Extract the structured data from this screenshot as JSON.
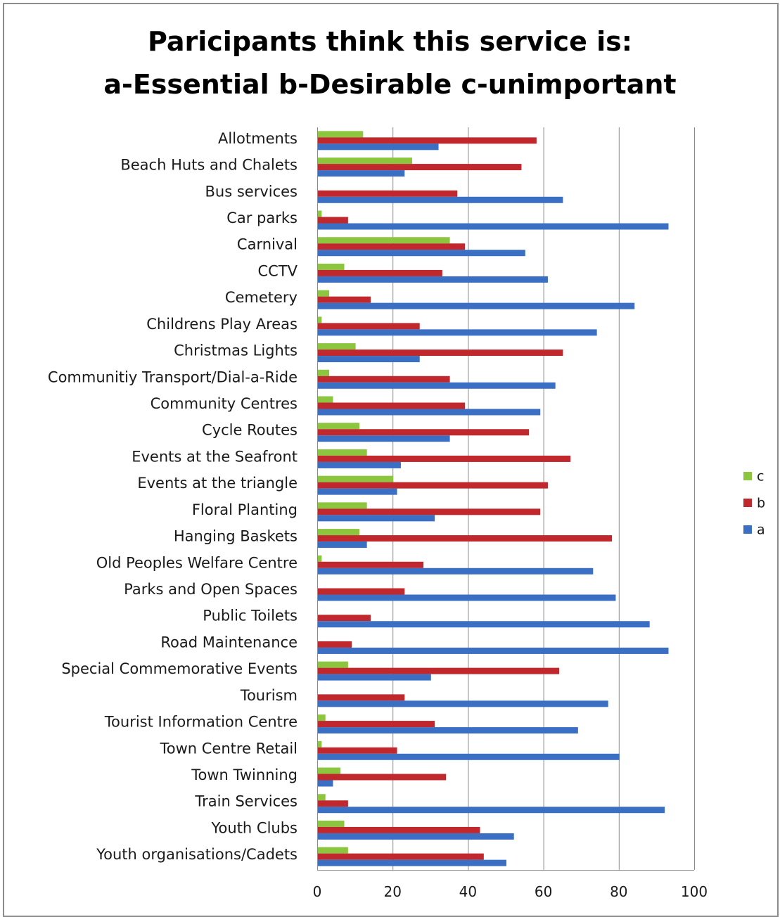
{
  "chart_data": {
    "type": "bar",
    "orientation": "horizontal",
    "title_line1": "Paricipants think this service is:",
    "title_line2": "a-Essential b-Desirable c-unimportant",
    "xlim": [
      0,
      100
    ],
    "x_ticks": [
      "0",
      "20",
      "40",
      "60",
      "80",
      "100"
    ],
    "grid": "vertical",
    "legend_position": "right",
    "categories": [
      "Allotments",
      "Beach Huts and Chalets",
      "Bus services",
      "Car parks",
      "Carnival",
      "CCTV",
      "Cemetery",
      "Childrens Play Areas",
      "Christmas Lights",
      "Communitiy Transport/Dial-a-Ride",
      "Community Centres",
      "Cycle Routes",
      "Events at the Seafront",
      "Events at the triangle",
      "Floral Planting",
      "Hanging Baskets",
      "Old Peoples Welfare Centre",
      "Parks and Open Spaces",
      "Public Toilets",
      "Road Maintenance",
      "Special Commemorative Events",
      "Tourism",
      "Tourist Information Centre",
      "Town Centre Retail",
      "Town Twinning",
      "Train Services",
      "Youth Clubs",
      "Youth organisations/Cadets"
    ],
    "series": [
      {
        "name": "c",
        "color": "#8cc63f",
        "values": [
          12,
          25,
          0,
          1,
          35,
          7,
          3,
          1,
          10,
          3,
          4,
          11,
          13,
          20,
          13,
          11,
          1,
          0,
          0,
          0,
          8,
          0,
          2,
          1,
          6,
          2,
          7,
          8
        ]
      },
      {
        "name": "b",
        "color": "#c0282d",
        "values": [
          58,
          54,
          37,
          8,
          39,
          33,
          14,
          27,
          65,
          35,
          39,
          56,
          67,
          61,
          59,
          78,
          28,
          23,
          14,
          9,
          64,
          23,
          31,
          21,
          34,
          8,
          43,
          44
        ]
      },
      {
        "name": "a",
        "color": "#3a6fc4",
        "values": [
          32,
          23,
          65,
          93,
          55,
          61,
          84,
          74,
          27,
          63,
          59,
          35,
          22,
          21,
          31,
          13,
          73,
          79,
          88,
          93,
          30,
          77,
          69,
          80,
          4,
          92,
          52,
          50
        ]
      }
    ]
  }
}
